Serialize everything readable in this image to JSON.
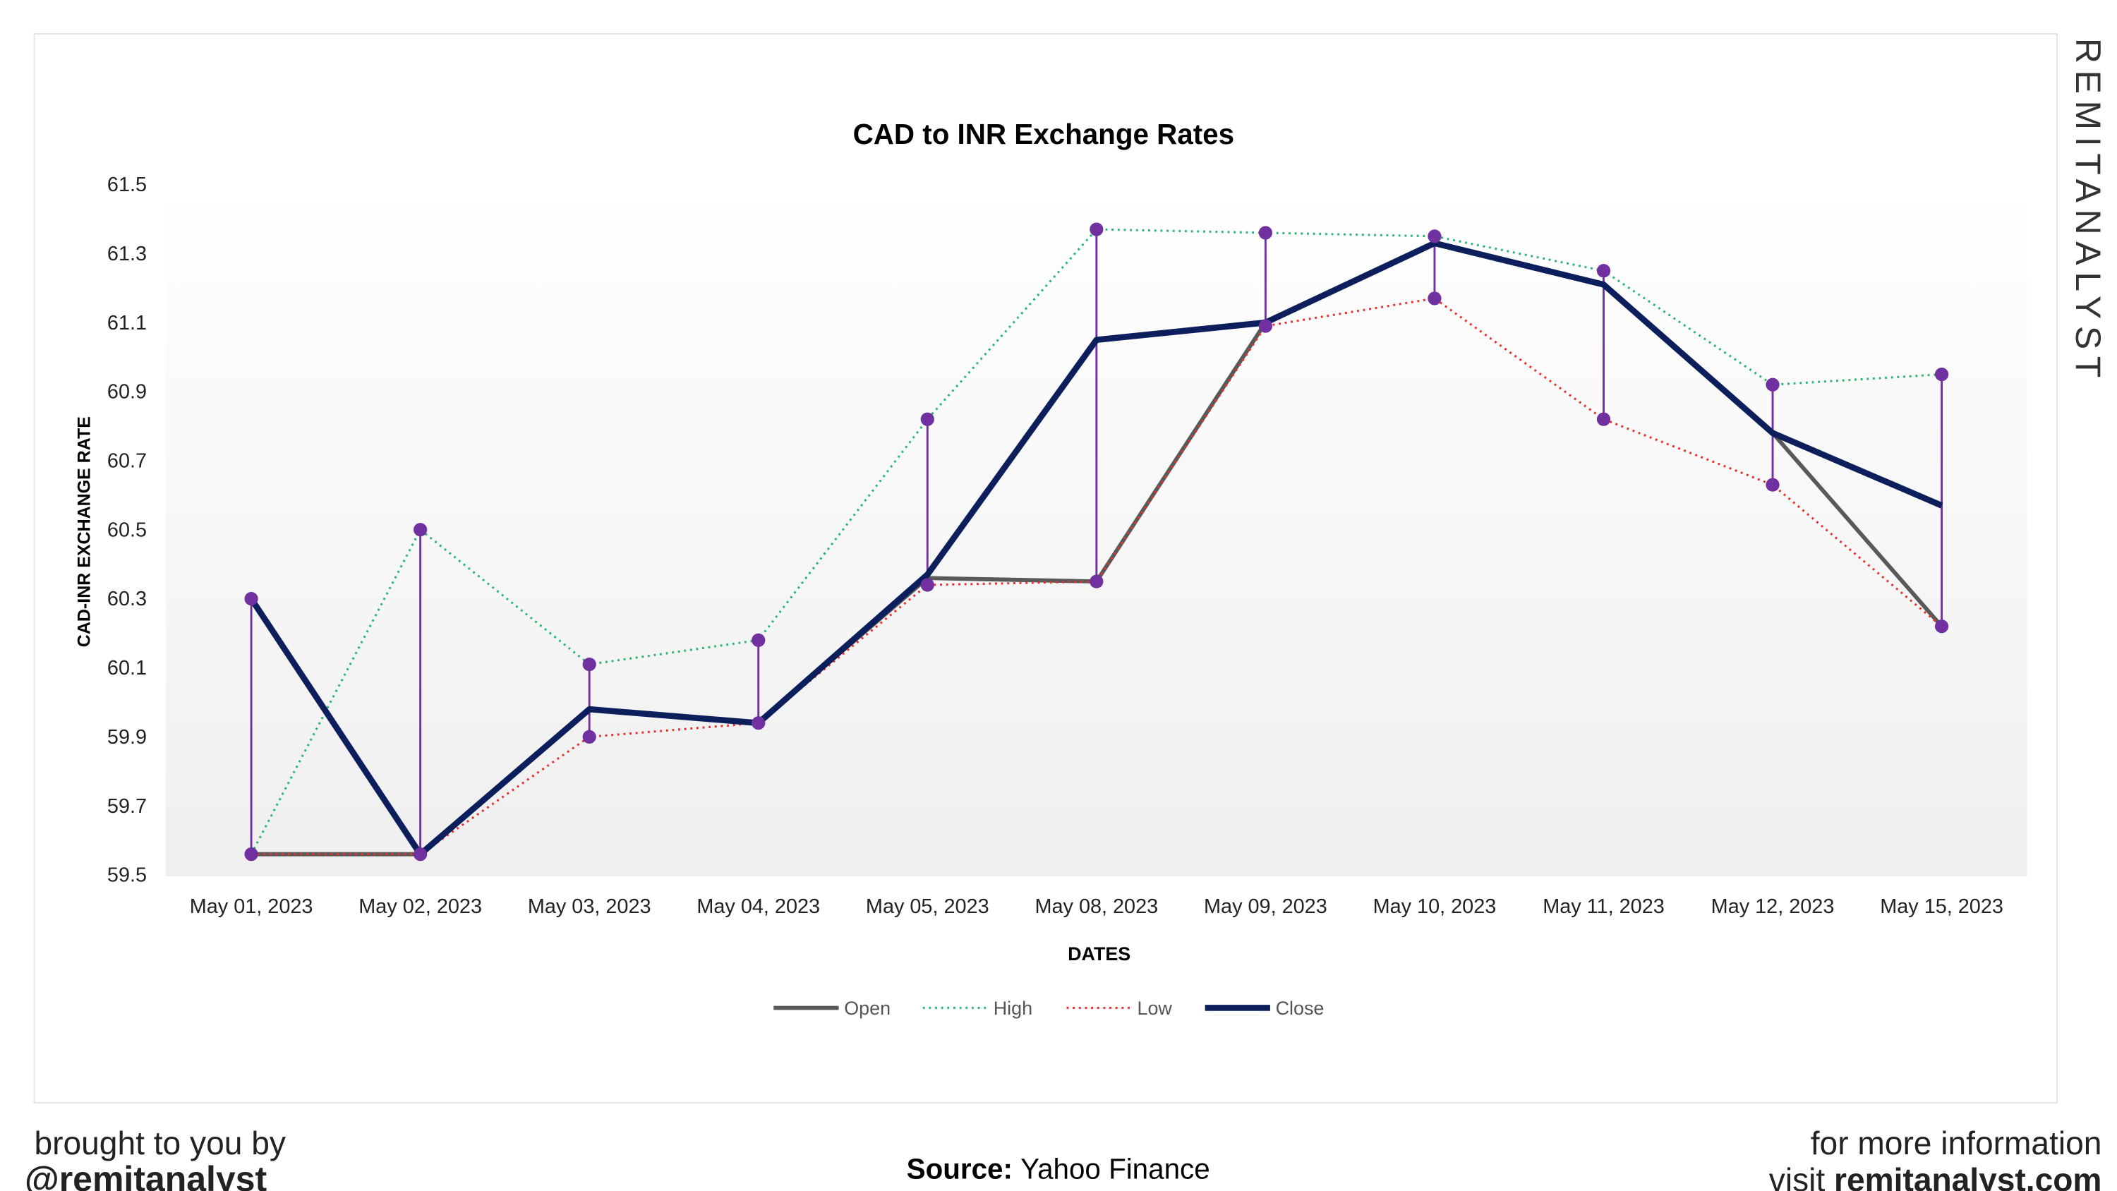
{
  "watermark": "REMITANALYST",
  "footer": {
    "left_line1": "brought to you by",
    "left_line2": "@remitanalyst",
    "source_label": "Source:",
    "source_value": "Yahoo Finance",
    "right_line1": "for more information",
    "right_line2_prefix": "visit",
    "right_line2_site": "remitanalyst.com"
  },
  "chart_data": {
    "type": "line",
    "title": "CAD to INR Exchange Rates",
    "xlabel": "DATES",
    "ylabel": "CAD-INR EXCHANGE RATE",
    "ylim": [
      59.5,
      61.5
    ],
    "yticks": [
      "59.5",
      "59.7",
      "59.9",
      "60.1",
      "60.3",
      "60.5",
      "60.7",
      "60.9",
      "61.1",
      "61.3",
      "61.5"
    ],
    "grid": false,
    "legend_position": "bottom",
    "categories": [
      "May 01, 2023",
      "May 02, 2023",
      "May 03, 2023",
      "May 04, 2023",
      "May 05, 2023",
      "May 08, 2023",
      "May 09, 2023",
      "May 10, 2023",
      "May 11, 2023",
      "May 12, 2023",
      "May 15, 2023"
    ],
    "series": [
      {
        "name": "Open",
        "color": "#595959",
        "style": "solid",
        "values": [
          59.56,
          59.56,
          59.98,
          59.94,
          60.36,
          60.35,
          61.1,
          61.33,
          61.21,
          60.78,
          60.22
        ]
      },
      {
        "name": "High",
        "color": "#2bb673",
        "style": "dotted",
        "values": [
          59.56,
          60.5,
          60.11,
          60.18,
          60.82,
          61.37,
          61.36,
          61.35,
          61.25,
          60.92,
          60.95
        ]
      },
      {
        "name": "Low",
        "color": "#e8302f",
        "style": "dotted",
        "values": [
          59.56,
          59.56,
          59.9,
          59.94,
          60.34,
          60.35,
          61.09,
          61.17,
          60.82,
          60.63,
          60.22
        ]
      },
      {
        "name": "Close",
        "color": "#0c1f5c",
        "style": "solid",
        "values": [
          60.3,
          59.56,
          59.98,
          59.94,
          60.37,
          61.05,
          61.1,
          61.33,
          61.21,
          60.78,
          60.57
        ]
      }
    ],
    "high_low_marker_color": "#7030a0"
  }
}
